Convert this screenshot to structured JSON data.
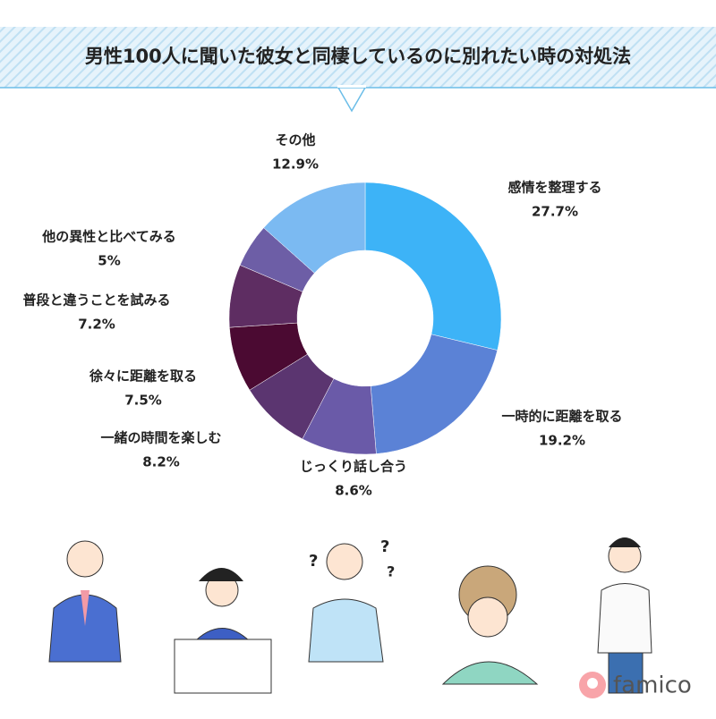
{
  "chart_data": {
    "type": "donut",
    "title": "男性100人に聞いた彼女と同棲しているのに別れたい時の対処法",
    "categories": [
      "感情を整理する",
      "一時的に距離を取る",
      "じっくり話し合う",
      "一緒の時間を楽しむ",
      "徐々に距離を取る",
      "普段と違うことを試みる",
      "他の異性と比べてみる",
      "その他"
    ],
    "values": [
      27.7,
      19.2,
      8.6,
      8.2,
      7.5,
      7.2,
      5,
      12.9
    ],
    "value_labels": [
      "27.7%",
      "19.2%",
      "8.6%",
      "8.2%",
      "7.5%",
      "7.2%",
      "5%",
      "12.9%"
    ],
    "colors": [
      "#3db3f7",
      "#5b82d6",
      "#6a5aa8",
      "#5b3570",
      "#4b0a32",
      "#5e2d62",
      "#6d5ea6",
      "#7bbaf2"
    ],
    "source": "famico"
  }
}
